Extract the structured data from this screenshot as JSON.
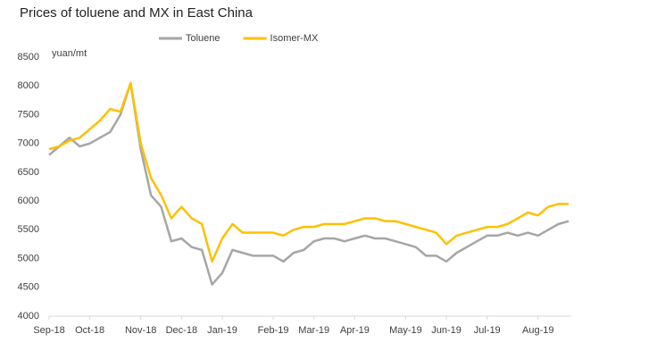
{
  "chart_data": {
    "type": "line",
    "title": "Prices of toluene and MX in East China",
    "y_label": "yuan/mt",
    "categories": [
      "Sep-18",
      null,
      null,
      null,
      "Oct-18",
      null,
      null,
      null,
      null,
      "Nov-18",
      null,
      null,
      null,
      "Dec-18",
      null,
      null,
      null,
      "Jan-19",
      null,
      null,
      null,
      null,
      "Feb-19",
      null,
      null,
      null,
      "Mar-19",
      null,
      null,
      null,
      "Apr-19",
      null,
      null,
      null,
      null,
      "May-19",
      null,
      null,
      null,
      "Jun-19",
      null,
      null,
      null,
      "Jul-19",
      null,
      null,
      null,
      null,
      "Aug-19",
      null,
      null,
      null
    ],
    "series": [
      {
        "name": "Toluene",
        "color": "#a6a6a6",
        "values": [
          6800,
          6950,
          7100,
          6950,
          7000,
          7100,
          7200,
          7500,
          8050,
          6900,
          6100,
          5900,
          5300,
          5350,
          5200,
          5150,
          4550,
          4750,
          5150,
          5100,
          5050,
          5050,
          5050,
          4950,
          5100,
          5150,
          5300,
          5350,
          5350,
          5300,
          5350,
          5400,
          5350,
          5350,
          5300,
          5250,
          5200,
          5050,
          5050,
          4950,
          5100,
          5200,
          5300,
          5400,
          5400,
          5450,
          5400,
          5450,
          5400,
          5500,
          5600,
          5650
        ]
      },
      {
        "name": "Isomer-MX",
        "color": "#ffc000",
        "values": [
          6900,
          6950,
          7050,
          7100,
          7250,
          7400,
          7600,
          7550,
          8050,
          7000,
          6400,
          6100,
          5700,
          5900,
          5700,
          5600,
          4950,
          5350,
          5600,
          5450,
          5450,
          5450,
          5450,
          5400,
          5500,
          5550,
          5550,
          5600,
          5600,
          5600,
          5650,
          5700,
          5700,
          5650,
          5650,
          5600,
          5550,
          5500,
          5450,
          5250,
          5400,
          5450,
          5500,
          5550,
          5550,
          5600,
          5700,
          5800,
          5750,
          5900,
          5950,
          5950
        ]
      }
    ],
    "ylim": [
      4000,
      8500
    ],
    "yticks": [
      4000,
      4500,
      5000,
      5500,
      6000,
      6500,
      7000,
      7500,
      8000,
      8500
    ],
    "legend": "top"
  }
}
